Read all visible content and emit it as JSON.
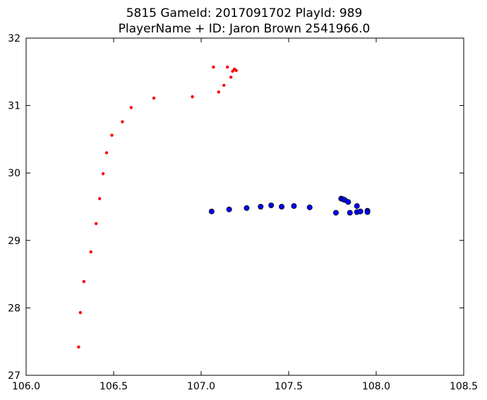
{
  "chart_data": {
    "type": "scatter",
    "title_line1": "5815 GameId: 2017091702 PlayId: 989",
    "title_line2": "PlayerName + ID: Jaron Brown 2541966.0",
    "xlabel": "",
    "ylabel": "",
    "xlim": [
      106.0,
      108.5
    ],
    "ylim": [
      27,
      32
    ],
    "x_ticks": [
      "106.0",
      "106.5",
      "107.0",
      "107.5",
      "108.0",
      "108.5"
    ],
    "y_ticks": [
      "27",
      "28",
      "29",
      "30",
      "31",
      "32"
    ],
    "grid": false,
    "legend": "none",
    "series": [
      {
        "color": "#ff0000",
        "marker": "small-dot",
        "points": [
          [
            106.3,
            27.42
          ],
          [
            106.31,
            27.93
          ],
          [
            106.33,
            28.39
          ],
          [
            106.37,
            28.83
          ],
          [
            106.4,
            29.25
          ],
          [
            106.42,
            29.62
          ],
          [
            106.44,
            29.99
          ],
          [
            106.46,
            30.3
          ],
          [
            106.49,
            30.56
          ],
          [
            106.55,
            30.76
          ],
          [
            106.6,
            30.97
          ],
          [
            106.73,
            31.11
          ],
          [
            106.95,
            31.13
          ],
          [
            107.07,
            31.57
          ],
          [
            107.1,
            31.2
          ],
          [
            107.13,
            31.3
          ],
          [
            107.15,
            31.57
          ],
          [
            107.17,
            31.42
          ],
          [
            107.18,
            31.51
          ],
          [
            107.19,
            31.54
          ],
          [
            107.2,
            31.52
          ]
        ]
      },
      {
        "color": "#0000ff",
        "marker": "circle",
        "points": [
          [
            107.06,
            29.43
          ],
          [
            107.16,
            29.46
          ],
          [
            107.26,
            29.48
          ],
          [
            107.34,
            29.5
          ],
          [
            107.4,
            29.52
          ],
          [
            107.46,
            29.5
          ],
          [
            107.53,
            29.51
          ],
          [
            107.62,
            29.49
          ],
          [
            107.77,
            29.41
          ],
          [
            107.8,
            29.62
          ],
          [
            107.81,
            29.61
          ],
          [
            107.82,
            29.6
          ],
          [
            107.84,
            29.57
          ],
          [
            107.85,
            29.41
          ],
          [
            107.89,
            29.51
          ],
          [
            107.89,
            29.42
          ],
          [
            107.91,
            29.43
          ],
          [
            107.95,
            29.44
          ],
          [
            107.95,
            29.42
          ]
        ]
      }
    ]
  }
}
